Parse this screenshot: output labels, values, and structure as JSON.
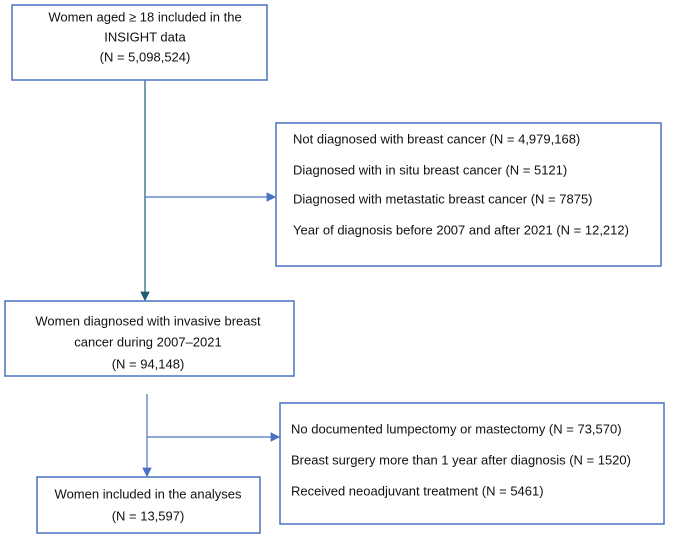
{
  "nodes": [
    {
      "lines": [
        "Women aged ≥ 18 included in the",
        "INSIGHT data",
        "(N = 5,098,524)"
      ]
    },
    {
      "lines": [
        "Not diagnosed with breast cancer (N = 4,979,168)",
        "Diagnosed with in situ breast cancer (N = 5121)",
        "Diagnosed with metastatic breast cancer (N = 7875)",
        "Year of diagnosis before 2007 and after 2021 (N = 12,212)"
      ]
    },
    {
      "lines": [
        "Women diagnosed with invasive breast",
        "cancer during 2007–2021",
        "(N = 94,148)"
      ]
    },
    {
      "lines": [
        "No documented lumpectomy or mastectomy (N = 73,570)",
        "Breast surgery more than 1 year after diagnosis (N = 1520)",
        "Received neoadjuvant treatment (N = 5461)"
      ]
    },
    {
      "lines": [
        "Women included in the analyses",
        "(N = 13,597)"
      ]
    }
  ]
}
